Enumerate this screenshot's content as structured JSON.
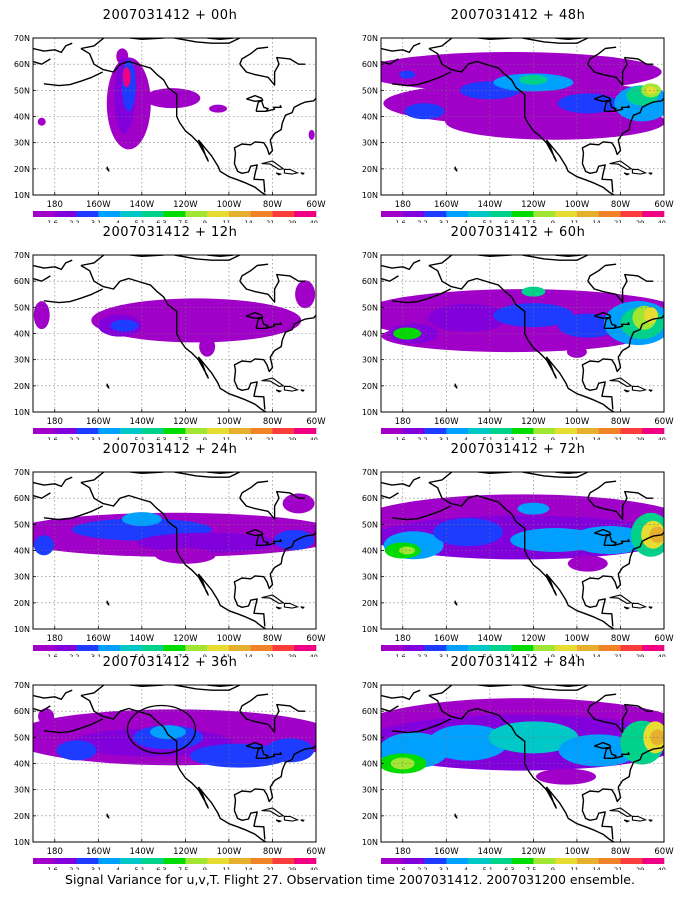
{
  "figure": {
    "caption": "Signal Variance for u,v,T. Flight 27. Observation time 2007031412. 2007031200 ensemble."
  },
  "axes": {
    "lat_labels": [
      "70N",
      "60N",
      "50N",
      "40N",
      "30N",
      "20N",
      "10N"
    ],
    "lon_labels": [
      "180",
      "160W",
      "140W",
      "120W",
      "100W",
      "80W",
      "60W"
    ]
  },
  "colorbar": {
    "levels": [
      "1.6",
      "2.2",
      "3.1",
      "4",
      "5.1",
      "6.3",
      "7.5",
      "9",
      "11",
      "14",
      "21",
      "29",
      "40"
    ],
    "colors": [
      "#a000c8",
      "#8200dc",
      "#1e3cff",
      "#00a0ff",
      "#00c8c8",
      "#00d28c",
      "#00dc00",
      "#a0e632",
      "#e6dc32",
      "#e6af2d",
      "#f08228",
      "#fa3c3c",
      "#f00082"
    ]
  },
  "panels": [
    {
      "title": "2007031412 + 00h",
      "lead": 0,
      "annotation": "none"
    },
    {
      "title": "2007031412 + 48h",
      "lead": 48,
      "annotation": "none"
    },
    {
      "title": "2007031412 + 12h",
      "lead": 12,
      "annotation": "none"
    },
    {
      "title": "2007031412 + 60h",
      "lead": 60,
      "annotation": "none"
    },
    {
      "title": "2007031412 + 24h",
      "lead": 24,
      "annotation": "none"
    },
    {
      "title": "2007031412 + 72h",
      "lead": 72,
      "annotation": "none"
    },
    {
      "title": "2007031412 + 36h",
      "lead": 36,
      "annotation": "ellipse"
    },
    {
      "title": "2007031412 + 84h",
      "lead": 84,
      "annotation": "none"
    }
  ]
}
